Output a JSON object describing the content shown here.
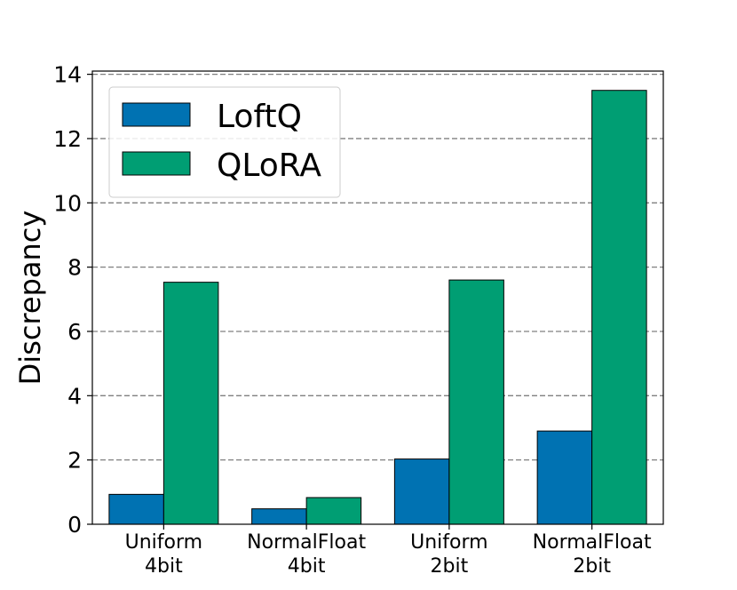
{
  "chart_data": {
    "type": "bar",
    "title": "",
    "xlabel": "",
    "ylabel": "Discrepancy",
    "categories": [
      [
        "Uniform",
        "4bit"
      ],
      [
        "NormalFloat",
        "4bit"
      ],
      [
        "Uniform",
        "2bit"
      ],
      [
        "NormalFloat",
        "2bit"
      ]
    ],
    "series": [
      {
        "name": "LoftQ",
        "color": "#0072b2",
        "values": [
          0.93,
          0.48,
          2.03,
          2.9
        ]
      },
      {
        "name": "QLoRA",
        "color": "#009e73",
        "values": [
          7.53,
          0.83,
          7.6,
          13.5
        ]
      }
    ],
    "ylim": [
      0,
      14.1
    ],
    "yticks": [
      0,
      2,
      4,
      6,
      8,
      10,
      12,
      14
    ],
    "grid": {
      "axis": "y",
      "style": "dashed",
      "color": "#808080"
    },
    "legend": {
      "position": "top-left"
    }
  }
}
